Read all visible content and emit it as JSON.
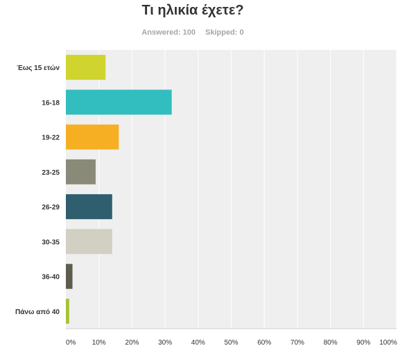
{
  "header": {
    "title": "Τι ηλικία έχετε?",
    "answered_label": "Answered: 100",
    "skipped_label": "Skipped: 0"
  },
  "chart_data": {
    "type": "bar",
    "orientation": "horizontal",
    "title": "Τι ηλικία έχετε?",
    "categories": [
      "Έως 15 ετών",
      "16-18",
      "19-22",
      "23-25",
      "26-29",
      "30-35",
      "36-40",
      "Πάνω από 40"
    ],
    "values": [
      12,
      32,
      16,
      9,
      14,
      14,
      2,
      1
    ],
    "colors": [
      "#d0d42e",
      "#32bdbf",
      "#f6af22",
      "#8a8a78",
      "#2f5f6f",
      "#d2d0c2",
      "#5d5c4e",
      "#a3c337"
    ],
    "xlim": [
      0,
      100
    ],
    "x_ticks": [
      "0%",
      "10%",
      "20%",
      "30%",
      "40%",
      "50%",
      "60%",
      "70%",
      "80%",
      "90%",
      "100%"
    ],
    "grid": true,
    "plot_background": "#efefef"
  }
}
